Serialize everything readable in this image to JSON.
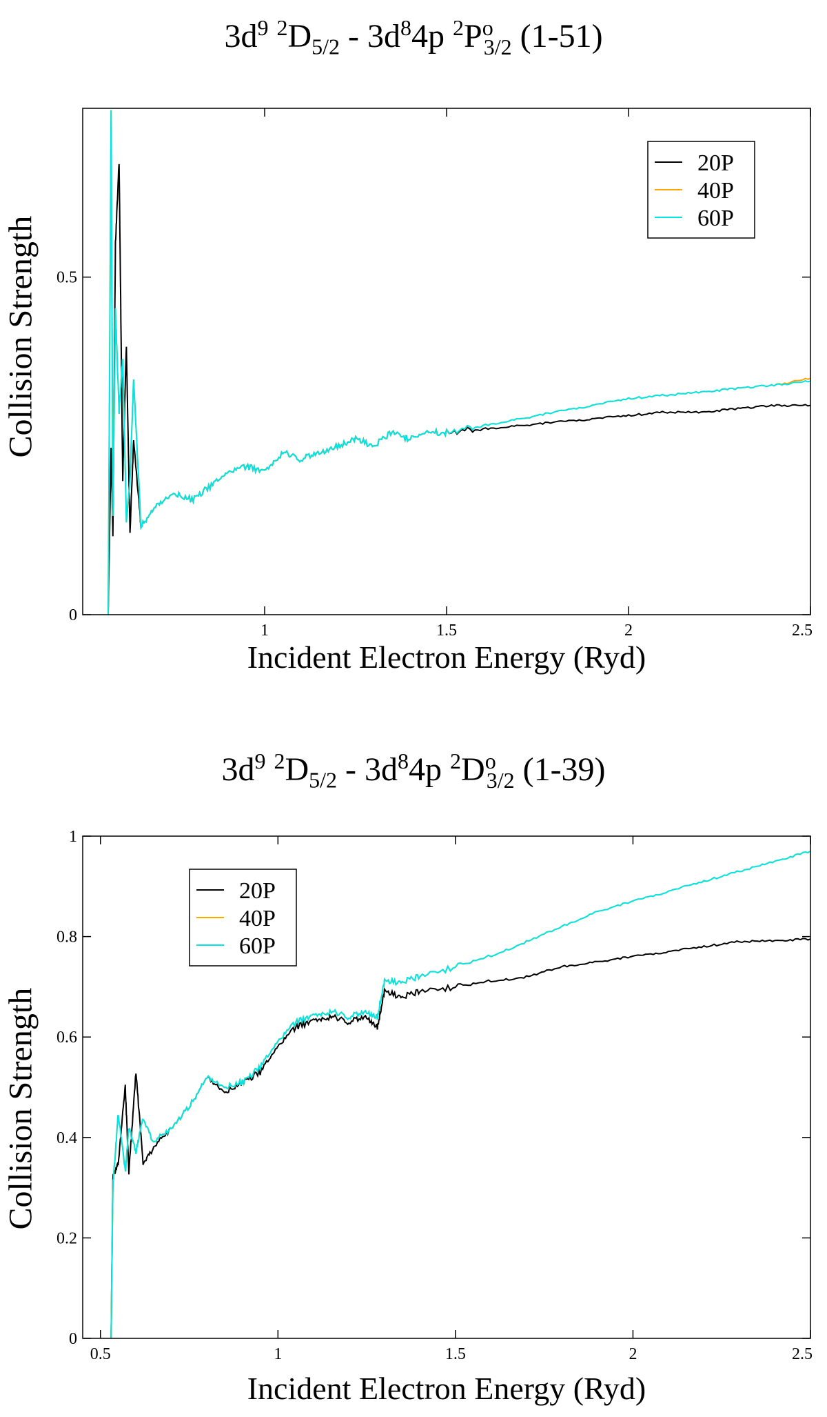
{
  "chart_data": [
    {
      "type": "line",
      "title_parts": {
        "a": "3d",
        "a_sup": "9",
        "b_sup": "2",
        "b": "D",
        "b_sub": "5/2",
        "c": " - 3d",
        "c_sup": "8",
        "d": "4p ",
        "d_sup": "2",
        "e": "P",
        "e_sup": "o",
        "e_sub": "3/2",
        "f": " (1-51)"
      },
      "xlabel": "Incident Electron Energy (Ryd)",
      "ylabel": "Collision Strength",
      "xlim": [
        0.5,
        2.5
      ],
      "ylim": [
        0,
        0.75
      ],
      "xticks": [
        1,
        1.5,
        2,
        2.5
      ],
      "xtick_labels": [
        "1",
        "1.5",
        "2",
        "2.5"
      ],
      "yticks": [
        0,
        0.5
      ],
      "ytick_labels": [
        "0",
        "0.5"
      ],
      "legend": "top-right",
      "series": [
        {
          "name": "20P",
          "color": "#000000",
          "x": [
            0.57,
            0.578,
            0.583,
            0.59,
            0.6,
            0.61,
            0.62,
            0.63,
            0.64,
            0.66,
            0.7,
            0.75,
            0.8,
            0.85,
            0.9,
            0.95,
            1.0,
            1.05,
            1.1,
            1.15,
            1.2,
            1.25,
            1.3,
            1.35,
            1.4,
            1.45,
            1.5,
            1.6,
            1.7,
            1.8,
            1.9,
            2.0,
            2.1,
            2.2,
            2.3,
            2.4,
            2.5
          ],
          "y": [
            0,
            0.25,
            0.12,
            0.55,
            0.67,
            0.2,
            0.4,
            0.12,
            0.26,
            0.13,
            0.16,
            0.18,
            0.17,
            0.19,
            0.21,
            0.22,
            0.21,
            0.24,
            0.23,
            0.24,
            0.25,
            0.26,
            0.25,
            0.27,
            0.26,
            0.27,
            0.27,
            0.275,
            0.28,
            0.285,
            0.29,
            0.295,
            0.3,
            0.3,
            0.305,
            0.31,
            0.31
          ]
        },
        {
          "name": "40P",
          "color": "#ffa500",
          "x": [
            0.57,
            0.578,
            0.583,
            0.59,
            0.6,
            0.61,
            0.62,
            0.63,
            0.64,
            0.66,
            0.7,
            0.75,
            0.8,
            0.85,
            0.9,
            0.95,
            1.0,
            1.05,
            1.1,
            1.15,
            1.2,
            1.25,
            1.3,
            1.35,
            1.4,
            1.45,
            1.5,
            1.6,
            1.7,
            1.8,
            1.9,
            2.0,
            2.1,
            2.2,
            2.3,
            2.4,
            2.5
          ],
          "y": [
            0,
            0.75,
            0.15,
            0.45,
            0.3,
            0.38,
            0.14,
            0.2,
            0.35,
            0.13,
            0.16,
            0.18,
            0.17,
            0.19,
            0.21,
            0.22,
            0.21,
            0.24,
            0.23,
            0.24,
            0.25,
            0.26,
            0.25,
            0.27,
            0.26,
            0.27,
            0.27,
            0.28,
            0.29,
            0.3,
            0.31,
            0.32,
            0.325,
            0.33,
            0.335,
            0.34,
            0.35
          ]
        },
        {
          "name": "60P",
          "color": "#00e5e5",
          "x": [
            0.57,
            0.578,
            0.583,
            0.59,
            0.6,
            0.61,
            0.62,
            0.63,
            0.64,
            0.66,
            0.7,
            0.75,
            0.8,
            0.85,
            0.9,
            0.95,
            1.0,
            1.05,
            1.1,
            1.15,
            1.2,
            1.25,
            1.3,
            1.35,
            1.4,
            1.45,
            1.5,
            1.6,
            1.7,
            1.8,
            1.9,
            2.0,
            2.1,
            2.2,
            2.3,
            2.4,
            2.5
          ],
          "y": [
            0,
            0.75,
            0.15,
            0.45,
            0.3,
            0.38,
            0.14,
            0.2,
            0.35,
            0.13,
            0.16,
            0.18,
            0.17,
            0.19,
            0.21,
            0.22,
            0.21,
            0.24,
            0.23,
            0.24,
            0.25,
            0.26,
            0.25,
            0.27,
            0.26,
            0.27,
            0.27,
            0.28,
            0.29,
            0.3,
            0.31,
            0.32,
            0.325,
            0.33,
            0.335,
            0.34,
            0.346
          ]
        }
      ]
    },
    {
      "type": "line",
      "title_parts": {
        "a": "3d",
        "a_sup": "9",
        "b_sup": "2",
        "b": "D",
        "b_sub": "5/2",
        "c": " - 3d",
        "c_sup": "8",
        "d": "4p ",
        "d_sup": "2",
        "e": "D",
        "e_sup": "o",
        "e_sub": "3/2",
        "f": " (1-39)"
      },
      "xlabel": "Incident Electron Energy (Ryd)",
      "ylabel": "Collision Strength",
      "xlim": [
        0.45,
        2.5
      ],
      "ylim": [
        0,
        1
      ],
      "xticks": [
        0.5,
        1,
        1.5,
        2,
        2.5
      ],
      "xtick_labels": [
        "0.5",
        "1",
        "1.5",
        "2",
        "2.5"
      ],
      "yticks": [
        0,
        0.2,
        0.4,
        0.6,
        0.8,
        1
      ],
      "ytick_labels": [
        "0",
        "0.2",
        "0.4",
        "0.6",
        "0.8",
        "1"
      ],
      "legend": "top-left",
      "series": [
        {
          "name": "20P",
          "color": "#000000",
          "x": [
            0.53,
            0.535,
            0.55,
            0.57,
            0.58,
            0.6,
            0.62,
            0.65,
            0.7,
            0.75,
            0.8,
            0.85,
            0.9,
            0.95,
            1.0,
            1.05,
            1.1,
            1.15,
            1.2,
            1.25,
            1.28,
            1.3,
            1.35,
            1.4,
            1.5,
            1.6,
            1.7,
            1.8,
            1.9,
            2.0,
            2.1,
            2.2,
            2.3,
            2.4,
            2.5
          ],
          "y": [
            0,
            0.32,
            0.35,
            0.5,
            0.33,
            0.53,
            0.35,
            0.38,
            0.42,
            0.46,
            0.52,
            0.49,
            0.51,
            0.53,
            0.58,
            0.62,
            0.63,
            0.64,
            0.63,
            0.64,
            0.62,
            0.69,
            0.68,
            0.69,
            0.7,
            0.71,
            0.72,
            0.74,
            0.75,
            0.76,
            0.77,
            0.78,
            0.79,
            0.792,
            0.795
          ]
        },
        {
          "name": "40P",
          "color": "#ffa500",
          "x": [
            0.53,
            0.535,
            0.55,
            0.57,
            0.58,
            0.6,
            0.62,
            0.65,
            0.7,
            0.75,
            0.8,
            0.85,
            0.9,
            0.95,
            1.0,
            1.05,
            1.1,
            1.15,
            1.2,
            1.25,
            1.28,
            1.3,
            1.35,
            1.4,
            1.5,
            1.6,
            1.7,
            1.8,
            1.9,
            2.0,
            2.1,
            2.2,
            2.3,
            2.4,
            2.5
          ],
          "y": [
            0,
            0.3,
            0.45,
            0.33,
            0.42,
            0.37,
            0.44,
            0.39,
            0.42,
            0.46,
            0.52,
            0.5,
            0.51,
            0.54,
            0.59,
            0.63,
            0.64,
            0.65,
            0.64,
            0.65,
            0.64,
            0.71,
            0.71,
            0.72,
            0.74,
            0.76,
            0.79,
            0.82,
            0.85,
            0.87,
            0.89,
            0.91,
            0.93,
            0.95,
            0.97
          ]
        },
        {
          "name": "60P",
          "color": "#00e5e5",
          "x": [
            0.53,
            0.535,
            0.55,
            0.57,
            0.58,
            0.6,
            0.62,
            0.65,
            0.7,
            0.75,
            0.8,
            0.85,
            0.9,
            0.95,
            1.0,
            1.05,
            1.1,
            1.15,
            1.2,
            1.25,
            1.28,
            1.3,
            1.35,
            1.4,
            1.5,
            1.6,
            1.7,
            1.8,
            1.9,
            2.0,
            2.1,
            2.2,
            2.3,
            2.4,
            2.5
          ],
          "y": [
            0,
            0.3,
            0.45,
            0.33,
            0.42,
            0.37,
            0.44,
            0.39,
            0.42,
            0.46,
            0.52,
            0.5,
            0.51,
            0.54,
            0.59,
            0.63,
            0.64,
            0.65,
            0.64,
            0.65,
            0.64,
            0.71,
            0.71,
            0.72,
            0.74,
            0.76,
            0.79,
            0.82,
            0.85,
            0.87,
            0.89,
            0.91,
            0.93,
            0.95,
            0.97
          ]
        }
      ]
    }
  ]
}
